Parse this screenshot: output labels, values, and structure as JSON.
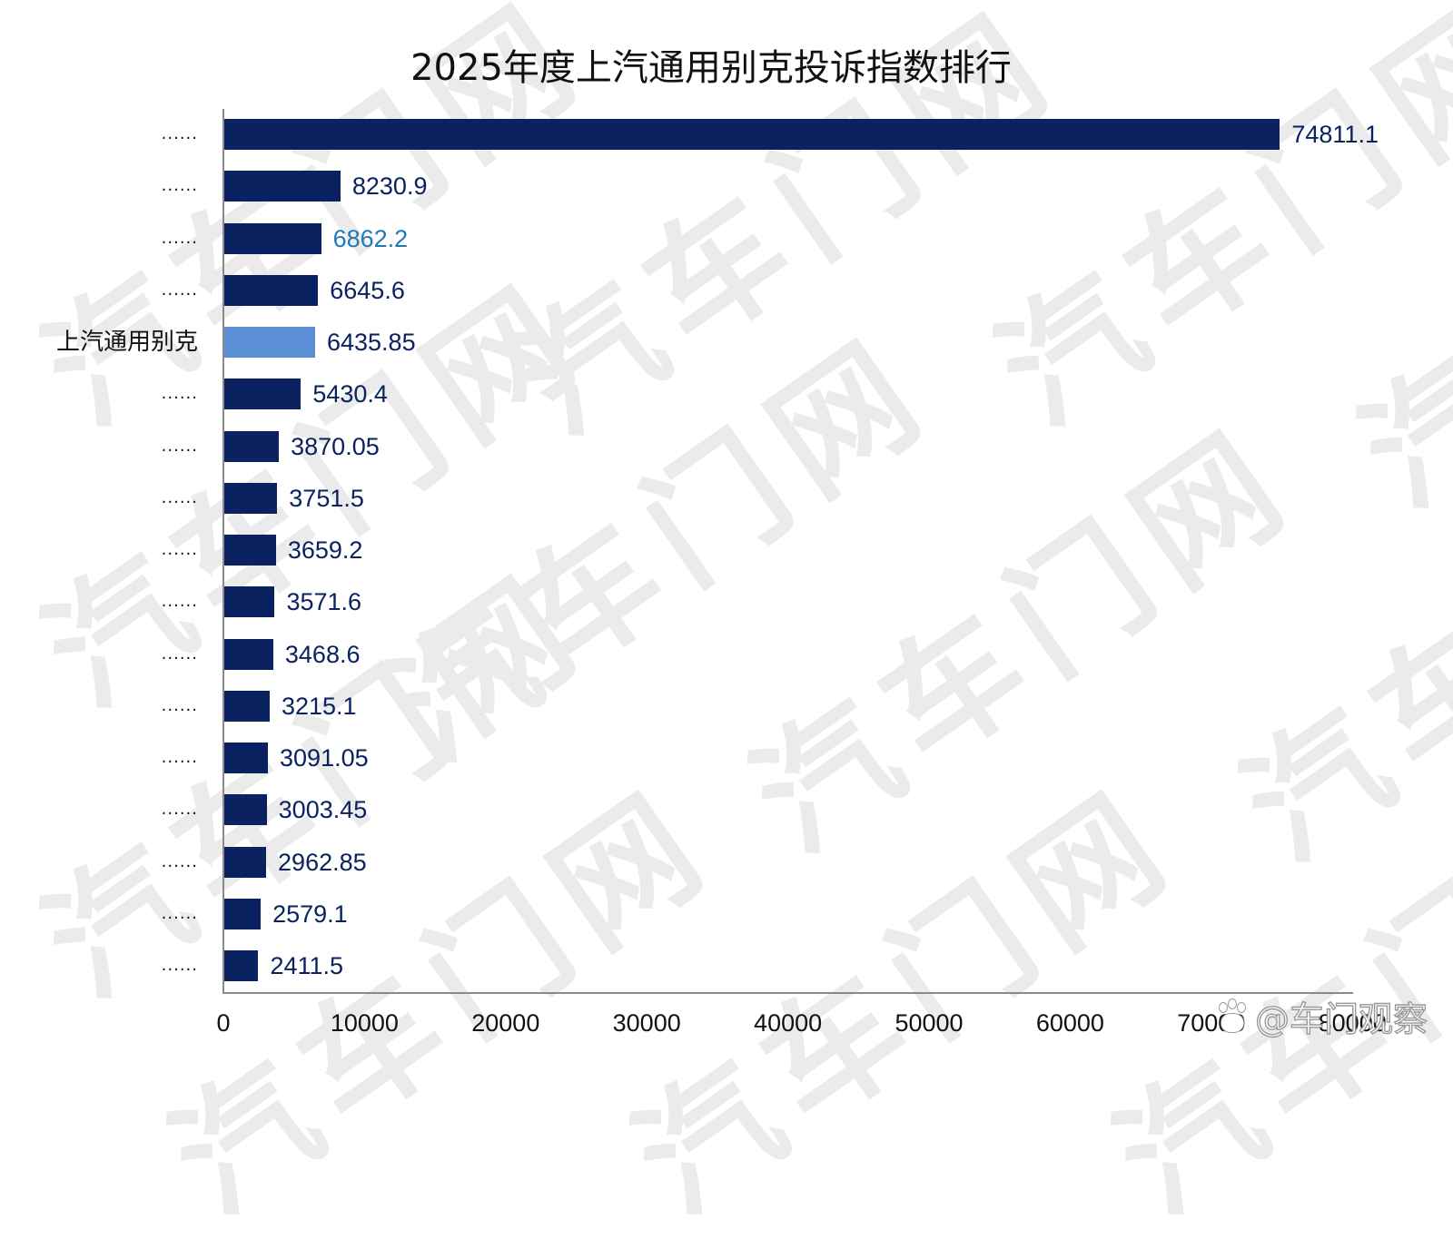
{
  "title": "2025年度上汽通用别克投诉指数排行",
  "watermark": {
    "text": "汽车门网"
  },
  "credit": {
    "text": "@车门观察",
    "icon": "weibo-paw-icon"
  },
  "colors": {
    "bar_default": "#0b2260",
    "bar_highlight": "#5a8fd6",
    "value_default": "#0b2260",
    "value_alt": "#1f78b8"
  },
  "chart_data": {
    "type": "bar",
    "orientation": "horizontal",
    "title": "2025年度上汽通用别克投诉指数排行",
    "xlabel": "",
    "ylabel": "",
    "xlim": [
      0,
      80000
    ],
    "x_ticks": [
      "0",
      "10000",
      "20000",
      "30000",
      "40000",
      "50000",
      "60000",
      "70000",
      "80000"
    ],
    "grid": false,
    "legend": null,
    "categories": [
      "......",
      "......",
      "......",
      "......",
      "上汽通用别克",
      "......",
      "......",
      "......",
      "......",
      "......",
      "......",
      "......",
      "......",
      "......",
      "......",
      "......",
      "......"
    ],
    "values": [
      74811.1,
      8230.9,
      6862.2,
      6645.6,
      6435.85,
      5430.4,
      3870.05,
      3751.5,
      3659.2,
      3571.6,
      3468.6,
      3215.1,
      3091.05,
      3003.45,
      2962.85,
      2579.1,
      2411.5
    ],
    "value_labels": [
      "74811.1",
      "8230.9",
      "6862.2",
      "6645.6",
      "6435.85",
      "5430.4",
      "3870.05",
      "3751.5",
      "3659.2",
      "3571.6",
      "3468.6",
      "3215.1",
      "3091.05",
      "3003.45",
      "2962.85",
      "2579.1",
      "2411.5"
    ],
    "highlight_index": 4,
    "annotations": []
  }
}
